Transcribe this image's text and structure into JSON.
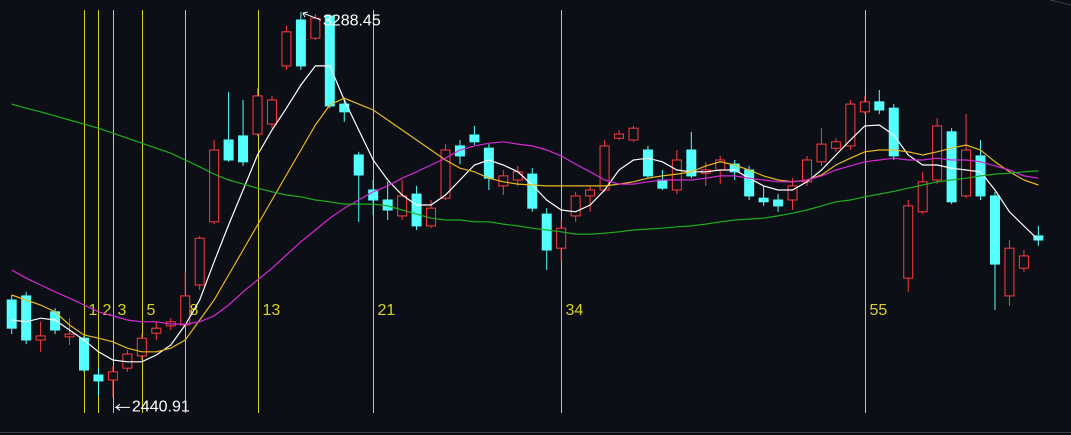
{
  "chart_data": {
    "type": "candlestick",
    "categories": [
      null,
      null,
      null,
      null,
      null,
      "1",
      "2",
      "3",
      null,
      "5",
      null,
      null,
      "8",
      null,
      null,
      null,
      null,
      "13",
      null,
      null,
      null,
      null,
      null,
      null,
      null,
      "21",
      null,
      null,
      null,
      null,
      null,
      null,
      null,
      null,
      null,
      null,
      null,
      null,
      "34",
      null,
      null,
      null,
      null,
      null,
      null,
      null,
      null,
      null,
      null,
      null,
      null,
      null,
      null,
      null,
      null,
      null,
      null,
      null,
      null,
      "55",
      null,
      null,
      null,
      null,
      null,
      null,
      null,
      null,
      null,
      null,
      null,
      null
    ],
    "open": [
      2655,
      2664,
      2567,
      2629,
      2574,
      2571,
      2490,
      2479,
      2505,
      2532,
      2582,
      2598,
      2600,
      2688,
      2827,
      3007,
      3016,
      3020,
      3042,
      3170,
      3271,
      3231,
      3280,
      3086,
      2974,
      2897,
      2875,
      2840,
      2888,
      2818,
      2879,
      2994,
      3018,
      2989,
      2906,
      2919,
      2932,
      2844,
      2769,
      2840,
      2884,
      2897,
      3011,
      3007,
      2985,
      2919,
      2897,
      2985,
      2934,
      2941,
      2954,
      2941,
      2879,
      2875,
      2875,
      2915,
      2959,
      2989,
      2994,
      3069,
      3091,
      3077,
      2703,
      2849,
      2919,
      3025,
      2884,
      2972,
      2884,
      2664,
      2725,
      2796
    ],
    "high": [
      2666,
      2673,
      2607,
      2637,
      2615,
      2576,
      2505,
      2510,
      2545,
      2580,
      2607,
      2615,
      2717,
      2796,
      3007,
      3113,
      3095,
      3121,
      3104,
      3258,
      3288.45,
      3284,
      3284,
      3095,
      2981,
      2919,
      2915,
      2919,
      2906,
      2875,
      2998,
      3007,
      3038,
      2998,
      2941,
      2950,
      2945,
      2857,
      2831,
      2893,
      2906,
      3007,
      3029,
      3038,
      2994,
      2941,
      2985,
      3025,
      2959,
      2972,
      2963,
      2950,
      2906,
      2888,
      2923,
      2972,
      3033,
      3011,
      3095,
      3104,
      3117,
      3086,
      2875,
      2937,
      3055,
      3033,
      3064,
      3007,
      2893,
      2787,
      2765,
      2818
    ],
    "low": [
      2580,
      2558,
      2541,
      2580,
      2556,
      2497,
      2444,
      2440.91,
      2497,
      2523,
      2567,
      2589,
      2593,
      2677,
      2822,
      2959,
      2950,
      3016,
      3033,
      3161,
      3161,
      3227,
      3077,
      3047,
      2827,
      2842,
      2831,
      2831,
      2809,
      2813,
      2875,
      2954,
      2996,
      2897,
      2886,
      2906,
      2849,
      2721,
      2739,
      2827,
      2849,
      2893,
      3007,
      3003,
      2923,
      2897,
      2888,
      2923,
      2906,
      2910,
      2919,
      2875,
      2862,
      2849,
      2853,
      2906,
      2950,
      2981,
      2985,
      3064,
      3064,
      2963,
      2673,
      2844,
      2910,
      2866,
      2879,
      2875,
      2633,
      2642,
      2717,
      2774
    ],
    "close": [
      2593,
      2567,
      2576,
      2589,
      2580,
      2501,
      2477,
      2497,
      2536,
      2571,
      2593,
      2607,
      2664,
      2791,
      2985,
      2963,
      2959,
      3104,
      3095,
      3245,
      3170,
      3275,
      3082,
      3069,
      2930,
      2875,
      2853,
      2884,
      2818,
      2857,
      2985,
      2972,
      3003,
      2923,
      2928,
      2937,
      2857,
      2765,
      2813,
      2884,
      2897,
      2994,
      3020,
      3033,
      2928,
      2901,
      2963,
      2928,
      2941,
      2963,
      2937,
      2884,
      2871,
      2862,
      2906,
      2963,
      2998,
      3003,
      3086,
      3091,
      3073,
      2972,
      2862,
      2915,
      3038,
      2871,
      2985,
      2884,
      2734,
      2769,
      2752,
      2787
    ],
    "up_color": "#ff3b3b",
    "down_color": "#54ffff",
    "series": [
      {
        "color": "#ffffff",
        "values": [
          2611,
          2607,
          2615,
          2611,
          2589,
          2567,
          2541,
          2523,
          2519,
          2519,
          2534,
          2556,
          2600,
          2655,
          2739,
          2820,
          2897,
          2974,
          3029,
          3077,
          3128,
          3170,
          3170,
          3095,
          3029,
          2963,
          2919,
          2886,
          2864,
          2864,
          2886,
          2919,
          2952,
          2963,
          2952,
          2937,
          2908,
          2875,
          2853,
          2849,
          2864,
          2897,
          2941,
          2963,
          2967,
          2959,
          2941,
          2937,
          2937,
          2941,
          2941,
          2923,
          2906,
          2897,
          2897,
          2915,
          2941,
          2974,
          3007,
          3038,
          3040,
          3018,
          2974,
          2952,
          2952,
          2945,
          2941,
          2937,
          2897,
          2849,
          2818,
          2787
        ]
      },
      {
        "color": "#e8b820",
        "values": [
          2666,
          2655,
          2644,
          2629,
          2600,
          2578,
          2571,
          2563,
          2549,
          2541,
          2541,
          2549,
          2567,
          2611,
          2655,
          2710,
          2765,
          2820,
          2875,
          2930,
          2985,
          3040,
          3084,
          3099,
          3086,
          3073,
          3051,
          3029,
          3007,
          2985,
          2963,
          2945,
          2937,
          2923,
          2915,
          2910,
          2908,
          2906,
          2906,
          2906,
          2906,
          2906,
          2910,
          2915,
          2923,
          2928,
          2932,
          2937,
          2950,
          2959,
          2952,
          2941,
          2928,
          2919,
          2915,
          2919,
          2930,
          2952,
          2967,
          2981,
          2985,
          2985,
          2981,
          2974,
          2981,
          2989,
          2996,
          2985,
          2959,
          2937,
          2919,
          2908
        ]
      },
      {
        "color": "#d42ad4",
        "values": [
          2721,
          2703,
          2688,
          2673,
          2659,
          2644,
          2629,
          2620,
          2611,
          2607,
          2607,
          2602,
          2602,
          2607,
          2620,
          2644,
          2673,
          2699,
          2725,
          2754,
          2783,
          2809,
          2835,
          2857,
          2875,
          2893,
          2906,
          2923,
          2937,
          2952,
          2967,
          2985,
          2994,
          3000,
          3003,
          2998,
          2994,
          2985,
          2972,
          2954,
          2937,
          2919,
          2910,
          2910,
          2915,
          2919,
          2919,
          2919,
          2923,
          2928,
          2928,
          2923,
          2919,
          2915,
          2915,
          2919,
          2928,
          2941,
          2950,
          2959,
          2963,
          2967,
          2963,
          2963,
          2967,
          2963,
          2963,
          2959,
          2950,
          2941,
          2928,
          2923
        ]
      },
      {
        "color": "#1fae1f",
        "values": [
          3086,
          3077,
          3069,
          3060,
          3051,
          3042,
          3033,
          3022,
          3011,
          3000,
          2989,
          2978,
          2963,
          2948,
          2932,
          2919,
          2910,
          2901,
          2893,
          2886,
          2882,
          2875,
          2871,
          2866,
          2866,
          2866,
          2862,
          2853,
          2844,
          2835,
          2831,
          2831,
          2827,
          2827,
          2822,
          2818,
          2813,
          2809,
          2805,
          2800,
          2800,
          2802,
          2805,
          2809,
          2811,
          2813,
          2816,
          2818,
          2822,
          2827,
          2831,
          2833,
          2835,
          2840,
          2846,
          2853,
          2862,
          2871,
          2875,
          2882,
          2888,
          2894,
          2901,
          2908,
          2915,
          2919,
          2923,
          2928,
          2932,
          2934,
          2937,
          2939
        ]
      }
    ],
    "category_line_color": "#d8d21e",
    "ylim": [
      2358,
      3315
    ]
  }
}
